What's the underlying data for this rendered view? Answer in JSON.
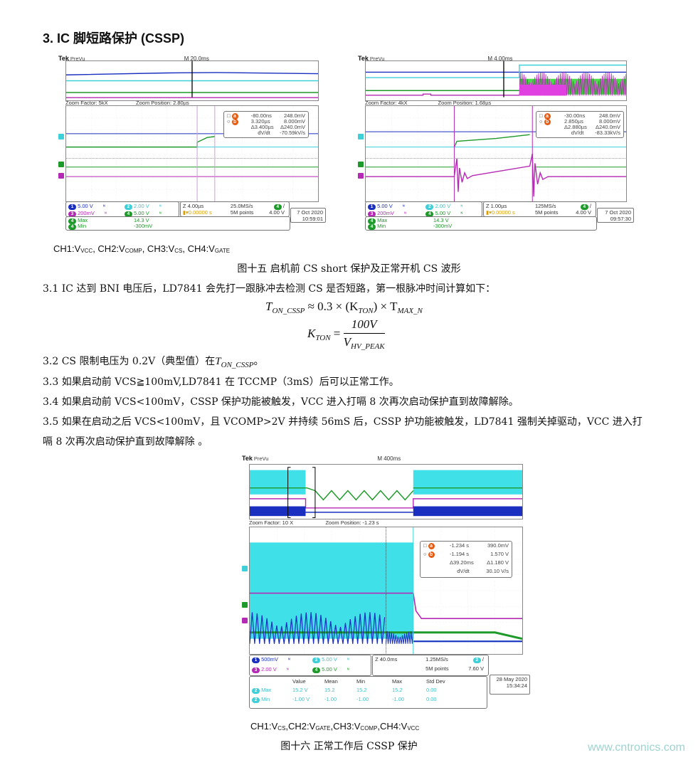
{
  "section_title": "3.  IC 脚短路保护 (CSSP)",
  "fig15": {
    "channel_legend": [
      "CH1:V",
      "VCC",
      ", CH2:V",
      "COMP",
      ", CH3:V",
      "CS",
      ", CH4:V",
      "GATE"
    ],
    "caption": "图十五 启机前 CS short 保护及正常开机 CS 波形"
  },
  "paragraphs": {
    "p31": "3.1 IC 达到 BNI 电压后，LD7841 会先打一跟脉冲去检测 CS 是否短路，第一根脉冲时间计算如下：",
    "formula1": {
      "lhs": "T",
      "lhs_sub": "ON_CSSP",
      "mid": " ≈ 0.3 × (K",
      "k_sub": "TON",
      "mid2": ") × T",
      "t_sub": "MAX_N"
    },
    "formula2": {
      "lhs": "K",
      "lhs_sub": "TON",
      "eq": " = ",
      "num": "100V",
      "den": "V",
      "den_sub": "HV_PEAK"
    },
    "p32_pre": "3.2 CS 限制电压为 0.2V（典型值）在",
    "p32_var": "T",
    "p32_sub": "ON_CSSP",
    "p32_post": "。",
    "p33": "3.3 如果启动前 VCS≧100mV,LD7841 在 TCCMP（3mS）后可以正常工作。",
    "p34": "3.4 如果启动前 VCS<100mV，CSSP 保护功能被触发，VCC 进入打嗝 8 次再次启动保护直到故障解除。",
    "p35a": "3.5 如果在启动之后 VCS<100mV，且 VCOMP>2V 并持续 56mS 后，CSSP 护功能被触发，LD7841 强制关掉驱动，VCC 进入打",
    "p35b": "嗝 8 次再次启动保护直到故障解除 。"
  },
  "fig16": {
    "channel_legend": [
      "CH1:V",
      "CS",
      ",CH2:V",
      "GATE",
      ",CH3:V",
      "COMP",
      ",CH4:V",
      "VCC"
    ],
    "caption": "图十六    正常工作后 CSSP 保护"
  },
  "watermark": "www.cntronics.com",
  "colors": {
    "ch1": "#1a2fbf",
    "ch2": "#3fcfd8",
    "ch3": "#b52ab5",
    "ch4": "#1e9a2a",
    "cursor": "#e55a10",
    "trigger": "#d9a000"
  },
  "scopes": [
    {
      "brand": "Tek",
      "mode": "PreVu",
      "main_timebase": "M 20.0ms",
      "zoom_factor": "Zoom Factor: 5kX",
      "zoom_position": "Zoom Position: 2.80µs",
      "cursor_a": {
        "label": "a",
        "time": "-80.00ns",
        "value": "248.0mV"
      },
      "cursor_b": {
        "label": "b",
        "time": "3.320µs",
        "value": "8.000mV"
      },
      "delta_time": "Δ3.400µs",
      "delta_value": "Δ240.0mV",
      "rate_label": "dV/dt",
      "rate_value": "-70.59kV/s",
      "channels": [
        {
          "n": "1",
          "scale": "5.00 V"
        },
        {
          "n": "2",
          "scale": "2.00 V"
        },
        {
          "n": "3",
          "scale": "200mV"
        },
        {
          "n": "4",
          "scale": "5.00 V"
        }
      ],
      "zoom_timebase": "Z 4.00µs",
      "sample_rate": "25.0MS/s",
      "trigger_pos": "▾0.00000 s",
      "record_length": "5M points",
      "trigger_channel": "4",
      "trigger_slope": "/",
      "trigger_level": "4.00 V",
      "measurements": [
        {
          "ch": "4",
          "name": "Max",
          "value": "14.3 V"
        },
        {
          "ch": "4",
          "name": "Min",
          "value": "-300mV"
        }
      ],
      "date": "7 Oct 2020",
      "time": "10:59:01"
    },
    {
      "brand": "Tek",
      "mode": "PreVu",
      "main_timebase": "M 4.00ms",
      "zoom_factor": "Zoom Factor: 4kX",
      "zoom_position": "Zoom Position: 1.68µs",
      "cursor_a": {
        "label": "a",
        "time": "-30.00ns",
        "value": "248.0mV"
      },
      "cursor_b": {
        "label": "b",
        "time": "2.850µs",
        "value": "8.000mV"
      },
      "delta_time": "Δ2.880µs",
      "delta_value": "Δ240.0mV",
      "rate_label": "dV/dt",
      "rate_value": "-83.33kV/s",
      "channels": [
        {
          "n": "1",
          "scale": "5.00 V"
        },
        {
          "n": "2",
          "scale": "2.00 V"
        },
        {
          "n": "3",
          "scale": "200mV"
        },
        {
          "n": "4",
          "scale": "5.00 V"
        }
      ],
      "zoom_timebase": "Z 1.00µs",
      "sample_rate": "125MS/s",
      "trigger_pos": "▾0.00000 s",
      "record_length": "5M points",
      "trigger_channel": "4",
      "trigger_slope": "/",
      "trigger_level": "4.00 V",
      "measurements": [
        {
          "ch": "4",
          "name": "Max",
          "value": "14.3 V"
        },
        {
          "ch": "4",
          "name": "Min",
          "value": "-300mV"
        }
      ],
      "date": "7 Oct 2020",
      "time": "09:57:30"
    },
    {
      "brand": "Tek",
      "mode": "PreVu",
      "main_timebase": "M 400ms",
      "zoom_factor": "Zoom Factor: 10 X",
      "zoom_position": "Zoom Position: -1.23 s",
      "cursor_a": {
        "label": "a",
        "time": "-1.234 s",
        "value": "390.0mV"
      },
      "cursor_b": {
        "label": "b",
        "time": "-1.194 s",
        "value": "1.570 V"
      },
      "delta_time": "Δ39.20ms",
      "delta_value": "Δ1.180 V",
      "rate_label": "dV/dt",
      "rate_value": "30.10 V/s",
      "channels": [
        {
          "n": "1",
          "scale": "500mV"
        },
        {
          "n": "2",
          "scale": "5.00 V"
        },
        {
          "n": "3",
          "scale": "2.00 V"
        },
        {
          "n": "4",
          "scale": "5.00 V"
        }
      ],
      "zoom_timebase": "Z 40.0ms",
      "sample_rate": "1.25MS/s",
      "record_length": "5M points",
      "trigger_channel": "2",
      "trigger_slope": "/",
      "trigger_level": "7.60 V",
      "table_headers": [
        "Value",
        "Mean",
        "Min",
        "Max",
        "Std Dev"
      ],
      "table_rows": [
        {
          "ch": "2",
          "name": "Max",
          "cells": [
            "15.2 V",
            "15.2",
            "15.2",
            "15.2",
            "0.00"
          ]
        },
        {
          "ch": "2",
          "name": "Min",
          "cells": [
            "-1.00 V",
            "-1.00",
            "-1.00",
            "-1.00",
            "0.00"
          ]
        }
      ],
      "date": "28 May 2020",
      "time": "15:34:24"
    }
  ]
}
